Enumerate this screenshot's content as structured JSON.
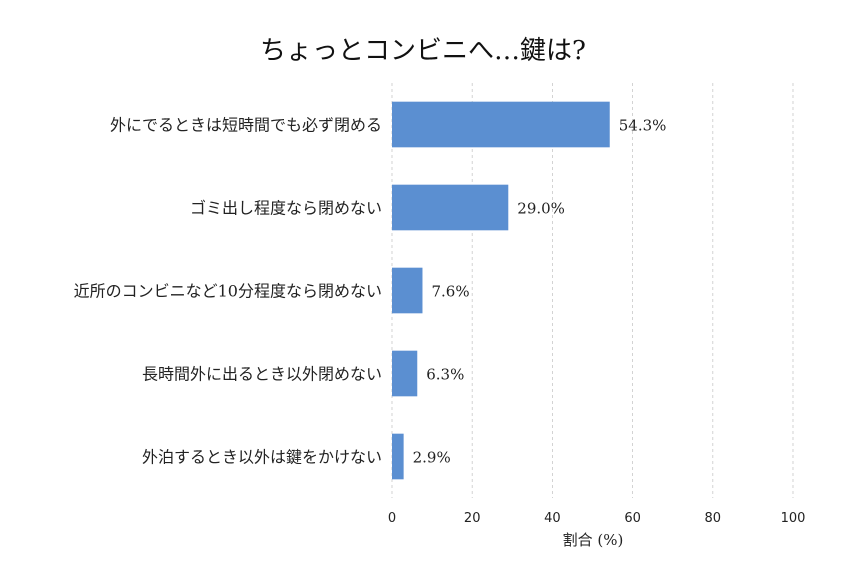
{
  "chart_data": {
    "type": "bar",
    "orientation": "horizontal",
    "title": "ちょっとコンビニへ…鍵は?",
    "xlabel": "割合 (%)",
    "ylabel": "",
    "xlim": [
      0,
      100
    ],
    "xticks": [
      0,
      20,
      40,
      60,
      80,
      100
    ],
    "grid": "vertical dashed",
    "bar_color": "#5b8fd1",
    "categories": [
      "外にでるときは短時間でも必ず閉める",
      "ゴミ出し程度なら閉めない",
      "近所のコンビニなど10分程度なら閉めない",
      "長時間外に出るとき以外閉めない",
      "外泊するとき以外は鍵をかけない"
    ],
    "values": [
      54.3,
      29.0,
      7.6,
      6.3,
      2.9
    ],
    "value_labels": [
      "54.3%",
      "29.0%",
      "7.6%",
      "6.3%",
      "2.9%"
    ]
  }
}
